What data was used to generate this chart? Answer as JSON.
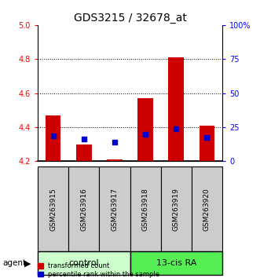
{
  "title": "GDS3215 / 32678_at",
  "samples": [
    "GSM263915",
    "GSM263916",
    "GSM263917",
    "GSM263918",
    "GSM263919",
    "GSM263920"
  ],
  "groups": [
    "control",
    "control",
    "control",
    "13-cis RA",
    "13-cis RA",
    "13-cis RA"
  ],
  "red_values": [
    4.47,
    4.3,
    4.21,
    4.57,
    4.81,
    4.41
  ],
  "blue_values": [
    4.35,
    4.33,
    4.31,
    4.36,
    4.39,
    4.34
  ],
  "y_min": 4.2,
  "y_max": 5.0,
  "y_ticks_left": [
    4.2,
    4.4,
    4.6,
    4.8,
    5.0
  ],
  "right_axis_labels": [
    "0",
    "25",
    "50",
    "75",
    "100%"
  ],
  "y_ticks_right_pos": [
    4.2,
    4.4,
    4.6,
    4.8,
    5.0
  ],
  "bar_width": 0.5,
  "red_color": "#cc0000",
  "blue_color": "#0000cc",
  "control_color": "#ccffcc",
  "ra_color": "#55ee55",
  "sample_bg_color": "#cccccc",
  "legend_red": "transformed count",
  "legend_blue": "percentile rank within the sample",
  "title_fontsize": 10,
  "tick_fontsize": 7,
  "sample_fontsize": 6.5,
  "group_fontsize": 8,
  "legend_fontsize": 6
}
